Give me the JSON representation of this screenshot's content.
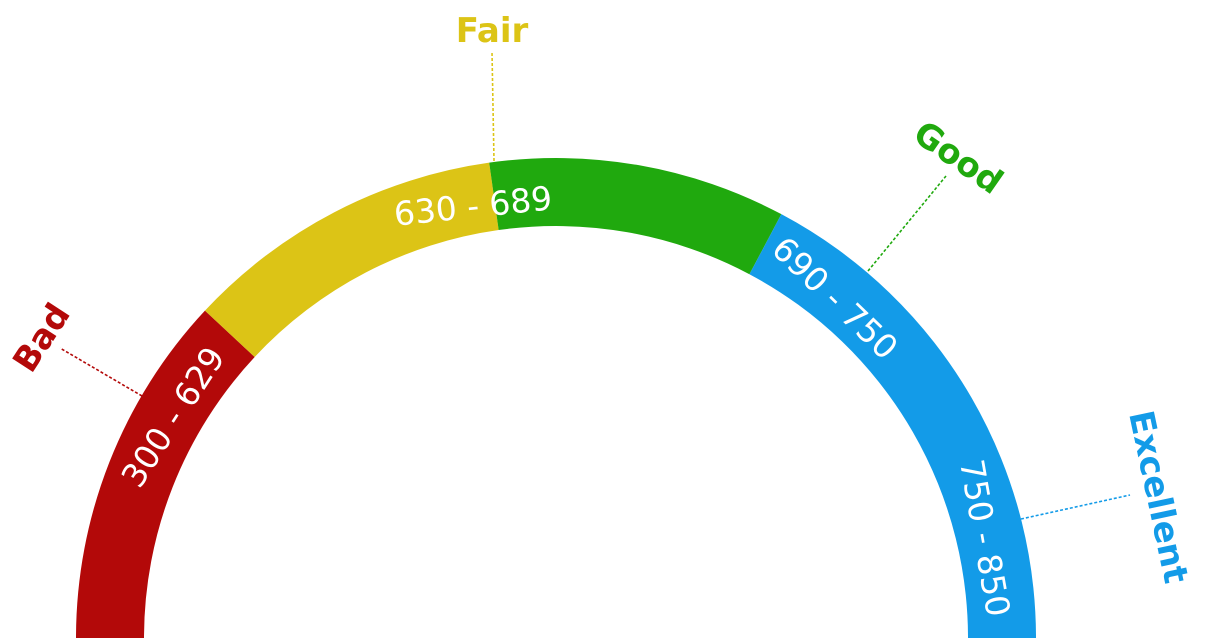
{
  "gauge": {
    "segments": [
      {
        "name": "Bad",
        "range": "300 - 629",
        "min": 300,
        "max": 629,
        "color": "#b30909"
      },
      {
        "name": "Fair",
        "range": "630 - 689",
        "min": 630,
        "max": 689,
        "color": "#dcc416"
      },
      {
        "name": "Good",
        "range": "690 - 750",
        "min": 690,
        "max": 750,
        "color": "#20a90e"
      },
      {
        "name": "Excellent",
        "range": "750 - 850",
        "min": 750,
        "max": 850,
        "color": "#139be8"
      }
    ]
  }
}
